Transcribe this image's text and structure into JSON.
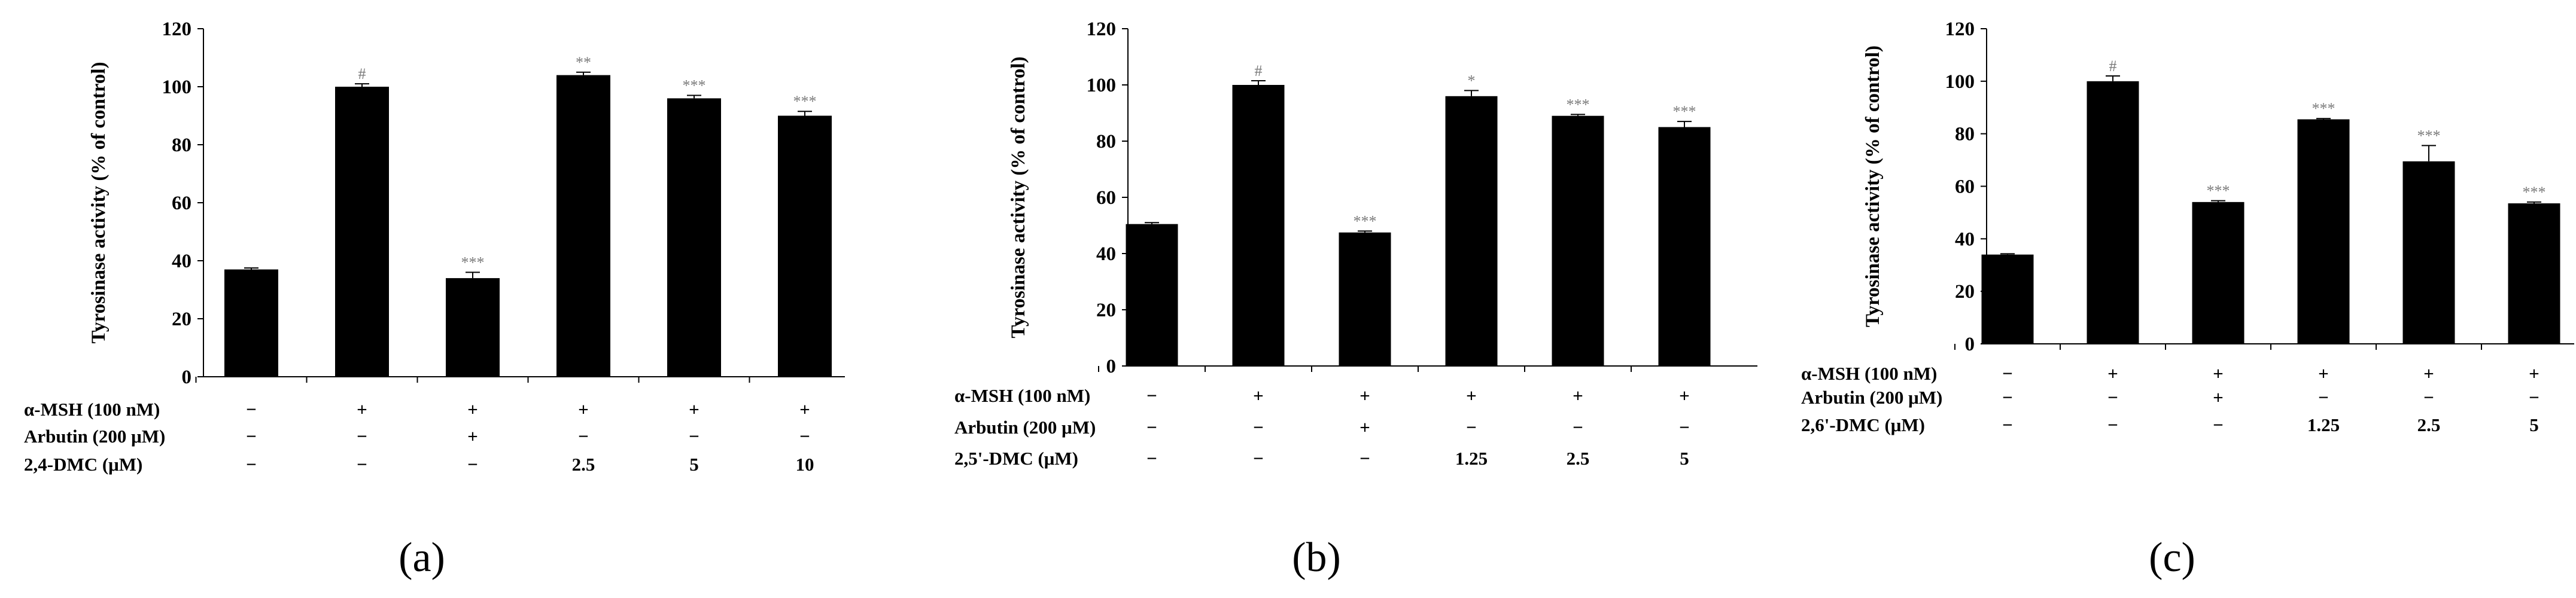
{
  "colors": {
    "bar": "#000000",
    "significance": "#7a7a7a"
  },
  "chart_data": [
    {
      "type": "bar",
      "panel_label": "(a)",
      "ylabel": "Tyrosinase activity (% of control)",
      "ylim": [
        0,
        120
      ],
      "yticks": [
        0,
        20,
        40,
        60,
        80,
        100,
        120
      ],
      "values": [
        37,
        100,
        34,
        104,
        96,
        90
      ],
      "errors": [
        0.5,
        1,
        2,
        1,
        1,
        1.5
      ],
      "significance": [
        "",
        "#",
        "***",
        "**",
        "***",
        "***"
      ],
      "treatment_rows": [
        {
          "label": "α-MSH (100 nM)",
          "values": [
            "−",
            "+",
            "+",
            "+",
            "+",
            "+"
          ]
        },
        {
          "label": "Arbutin (200 μM)",
          "values": [
            "−",
            "−",
            "+",
            "−",
            "−",
            "−"
          ]
        },
        {
          "label": "2,4-DMC (μM)",
          "values": [
            "−",
            "−",
            "−",
            "2.5",
            "5",
            "10"
          ]
        }
      ]
    },
    {
      "type": "bar",
      "panel_label": "(b)",
      "ylabel": "Tyrosinase activity (% of control)",
      "ylim": [
        0,
        120
      ],
      "yticks": [
        0,
        20,
        40,
        60,
        80,
        100,
        120
      ],
      "values": [
        50.5,
        100,
        47.5,
        96,
        89,
        85
      ],
      "errors": [
        0.5,
        1.5,
        0.5,
        2,
        0.5,
        2
      ],
      "significance": [
        "",
        "#",
        "***",
        "*",
        "***",
        "***"
      ],
      "treatment_rows": [
        {
          "label": "α-MSH (100 nM)",
          "values": [
            "−",
            "+",
            "+",
            "+",
            "+",
            "+"
          ]
        },
        {
          "label": "Arbutin (200 μM)",
          "values": [
            "−",
            "−",
            "+",
            "−",
            "−",
            "−"
          ]
        },
        {
          "label": "2,5'-DMC (μM)",
          "values": [
            "−",
            "−",
            "−",
            "1.25",
            "2.5",
            "5"
          ]
        }
      ]
    },
    {
      "type": "bar",
      "panel_label": "(c)",
      "ylabel": "Tyrosinase activity (% of control)",
      "ylim": [
        0,
        120
      ],
      "yticks": [
        0,
        20,
        40,
        60,
        80,
        100,
        120
      ],
      "values": [
        34,
        100,
        54,
        85.5,
        69.5,
        53.5
      ],
      "errors": [
        0.3,
        2,
        0.5,
        0.3,
        6,
        0.5
      ],
      "significance": [
        "",
        "#",
        "***",
        "***",
        "***",
        "***"
      ],
      "treatment_rows": [
        {
          "label": "α-MSH (100 nM)",
          "values": [
            "−",
            "+",
            "+",
            "+",
            "+",
            "+"
          ]
        },
        {
          "label": "Arbutin (200 μM)",
          "values": [
            "−",
            "−",
            "+",
            "−",
            "−",
            "−"
          ]
        },
        {
          "label": "2,6'-DMC (μM)",
          "values": [
            "−",
            "−",
            "−",
            "1.25",
            "2.5",
            "5"
          ]
        }
      ]
    }
  ]
}
